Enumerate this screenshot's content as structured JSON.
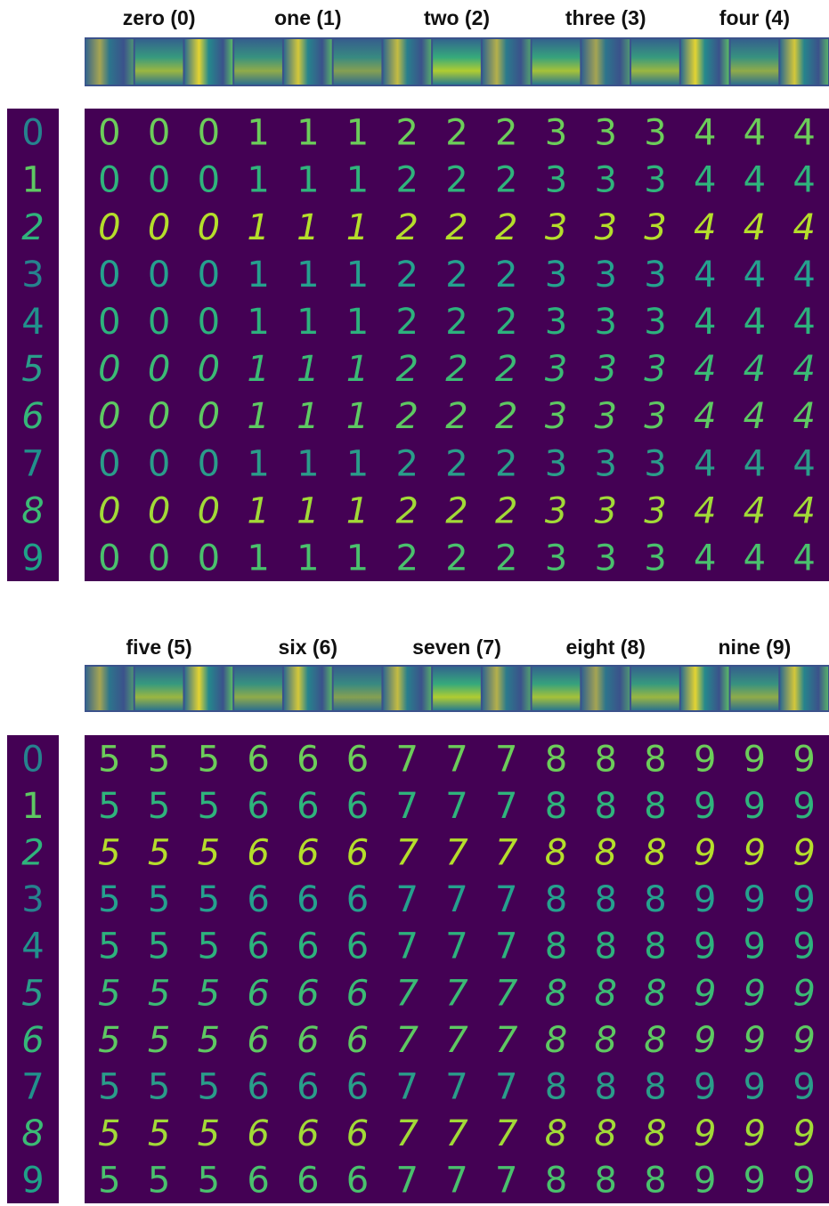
{
  "panels": [
    {
      "labels": [
        "zero (0)",
        "one (1)",
        "two (2)",
        "three (3)",
        "four (4)"
      ],
      "column_digits": [
        "0",
        "1",
        "2",
        "3",
        "4"
      ],
      "row_digits": [
        "0",
        "1",
        "2",
        "3",
        "4",
        "5",
        "6",
        "7",
        "8",
        "9"
      ]
    },
    {
      "labels": [
        "five (5)",
        "six (6)",
        "seven (7)",
        "eight (8)",
        "nine (9)"
      ],
      "column_digits": [
        "5",
        "6",
        "7",
        "8",
        "9"
      ],
      "row_digits": [
        "0",
        "1",
        "2",
        "3",
        "4",
        "5",
        "6",
        "7",
        "8",
        "9"
      ]
    }
  ]
}
